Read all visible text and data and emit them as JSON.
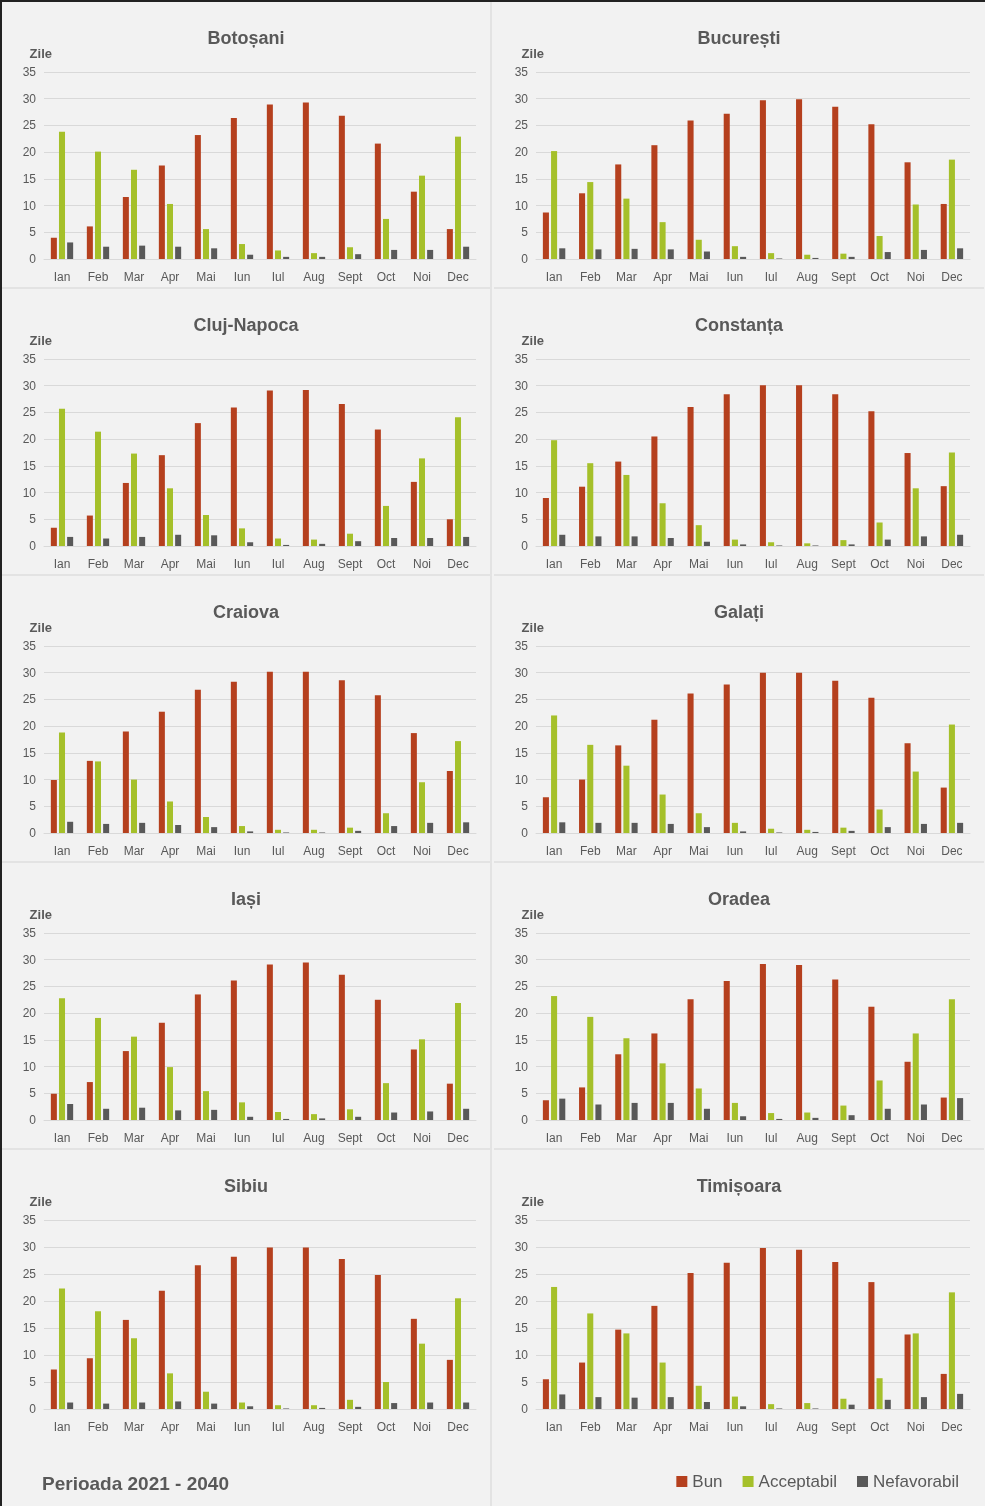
{
  "chart_data": [
    {
      "type": "bar",
      "title": "Botoșani",
      "ylabel": "Zile",
      "categories": [
        "Ian",
        "Feb",
        "Mar",
        "Apr",
        "Mai",
        "Iun",
        "Iul",
        "Aug",
        "Sept",
        "Oct",
        "Noi",
        "Dec"
      ],
      "ylim": [
        0,
        35
      ],
      "yticks": [
        0,
        5,
        10,
        15,
        20,
        25,
        30,
        35
      ],
      "grid": "y",
      "legend": false,
      "series": [
        {
          "color": "#b5401e",
          "values": [
            4,
            6.1,
            11.6,
            17.5,
            23.2,
            26.4,
            28.9,
            29.3,
            26.8,
            21.6,
            12.6,
            5.6
          ]
        },
        {
          "color": "#a5c02a",
          "values": [
            23.8,
            20.1,
            16.7,
            10.3,
            5.6,
            2.8,
            1.6,
            1.1,
            2.2,
            7.5,
            15.6,
            22.9
          ]
        },
        {
          "color": "#595959",
          "values": [
            3.1,
            2.3,
            2.5,
            2.3,
            2,
            0.8,
            0.4,
            0.4,
            0.9,
            1.7,
            1.7,
            2.3
          ]
        }
      ]
    },
    {
      "type": "bar",
      "title": "București",
      "ylabel": "Zile",
      "categories": [
        "Ian",
        "Feb",
        "Mar",
        "Apr",
        "Mai",
        "Iun",
        "Iul",
        "Aug",
        "Sept",
        "Oct",
        "Noi",
        "Dec"
      ],
      "ylim": [
        0,
        35
      ],
      "yticks": [
        0,
        5,
        10,
        15,
        20,
        25,
        30,
        35
      ],
      "grid": "y",
      "legend": false,
      "series": [
        {
          "color": "#b5401e",
          "values": [
            8.7,
            12.3,
            17.7,
            21.3,
            25.9,
            27.2,
            29.7,
            29.9,
            28.5,
            25.2,
            18.1,
            10.3
          ]
        },
        {
          "color": "#a5c02a",
          "values": [
            20.2,
            14.4,
            11.3,
            6.9,
            3.6,
            2.4,
            1.1,
            0.8,
            1,
            4.3,
            10.2,
            18.6
          ]
        },
        {
          "color": "#595959",
          "values": [
            2,
            1.8,
            1.9,
            1.8,
            1.4,
            0.4,
            0.1,
            0.2,
            0.4,
            1.3,
            1.7,
            2
          ]
        }
      ]
    },
    {
      "type": "bar",
      "title": "Cluj-Napoca",
      "ylabel": "Zile",
      "categories": [
        "Ian",
        "Feb",
        "Mar",
        "Apr",
        "Mai",
        "Iun",
        "Iul",
        "Aug",
        "Sept",
        "Oct",
        "Noi",
        "Dec"
      ],
      "ylim": [
        0,
        35
      ],
      "yticks": [
        0,
        5,
        10,
        15,
        20,
        25,
        30,
        35
      ],
      "grid": "y",
      "legend": false,
      "series": [
        {
          "color": "#b5401e",
          "values": [
            3.4,
            5.7,
            11.8,
            17,
            23,
            25.9,
            29.1,
            29.2,
            26.6,
            21.8,
            12,
            5
          ]
        },
        {
          "color": "#a5c02a",
          "values": [
            25.7,
            21.4,
            17.3,
            10.8,
            5.8,
            3.3,
            1.4,
            1.2,
            2.3,
            7.5,
            16.4,
            24.1
          ]
        },
        {
          "color": "#595959",
          "values": [
            1.7,
            1.4,
            1.7,
            2.1,
            2,
            0.7,
            0.2,
            0.4,
            0.9,
            1.5,
            1.5,
            1.7
          ]
        }
      ]
    },
    {
      "type": "bar",
      "title": "Constanța",
      "ylabel": "Zile",
      "categories": [
        "Ian",
        "Feb",
        "Mar",
        "Apr",
        "Mai",
        "Iun",
        "Iul",
        "Aug",
        "Sept",
        "Oct",
        "Noi",
        "Dec"
      ],
      "ylim": [
        0,
        35
      ],
      "yticks": [
        0,
        5,
        10,
        15,
        20,
        25,
        30,
        35
      ],
      "grid": "y",
      "legend": false,
      "series": [
        {
          "color": "#b5401e",
          "values": [
            9,
            11.1,
            15.8,
            20.5,
            26,
            28.4,
            30.1,
            30.1,
            28.4,
            25.2,
            17.4,
            11.2
          ]
        },
        {
          "color": "#a5c02a",
          "values": [
            19.8,
            15.5,
            13.3,
            8,
            3.9,
            1.2,
            0.7,
            0.5,
            1.1,
            4.4,
            10.8,
            17.5
          ]
        },
        {
          "color": "#595959",
          "values": [
            2.1,
            1.8,
            1.8,
            1.5,
            0.8,
            0.3,
            0.1,
            0.1,
            0.3,
            1.2,
            1.8,
            2.1
          ]
        }
      ]
    },
    {
      "type": "bar",
      "title": "Craiova",
      "ylabel": "Zile",
      "categories": [
        "Ian",
        "Feb",
        "Mar",
        "Apr",
        "Mai",
        "Iun",
        "Iul",
        "Aug",
        "Sept",
        "Oct",
        "Noi",
        "Dec"
      ],
      "ylim": [
        0,
        35
      ],
      "yticks": [
        0,
        5,
        10,
        15,
        20,
        25,
        30,
        35
      ],
      "grid": "y",
      "legend": false,
      "series": [
        {
          "color": "#b5401e",
          "values": [
            9.9,
            13.5,
            19,
            22.7,
            26.8,
            28.3,
            30.2,
            30.2,
            28.6,
            25.8,
            18.7,
            11.6
          ]
        },
        {
          "color": "#a5c02a",
          "values": [
            18.8,
            13.4,
            10,
            5.9,
            3,
            1.3,
            0.6,
            0.6,
            1,
            3.7,
            9.5,
            17.2
          ]
        },
        {
          "color": "#595959",
          "values": [
            2.1,
            1.7,
            1.9,
            1.5,
            1.1,
            0.3,
            0.1,
            0.1,
            0.4,
            1.3,
            1.9,
            2
          ]
        }
      ]
    },
    {
      "type": "bar",
      "title": "Galați",
      "ylabel": "Zile",
      "categories": [
        "Ian",
        "Feb",
        "Mar",
        "Apr",
        "Mai",
        "Iun",
        "Iul",
        "Aug",
        "Sept",
        "Oct",
        "Noi",
        "Dec"
      ],
      "ylim": [
        0,
        35
      ],
      "yticks": [
        0,
        5,
        10,
        15,
        20,
        25,
        30,
        35
      ],
      "grid": "y",
      "legend": false,
      "series": [
        {
          "color": "#b5401e",
          "values": [
            6.7,
            10,
            16.4,
            21.2,
            26.1,
            27.8,
            30,
            30,
            28.5,
            25.3,
            16.8,
            8.5
          ]
        },
        {
          "color": "#a5c02a",
          "values": [
            22,
            16.5,
            12.6,
            7.2,
            3.7,
            1.9,
            0.8,
            0.6,
            1,
            4.4,
            11.5,
            20.3
          ]
        },
        {
          "color": "#595959",
          "values": [
            2,
            1.9,
            1.9,
            1.7,
            1.1,
            0.3,
            0.1,
            0.2,
            0.4,
            1.1,
            1.7,
            1.9
          ]
        }
      ]
    },
    {
      "type": "bar",
      "title": "Iași",
      "ylabel": "Zile",
      "categories": [
        "Ian",
        "Feb",
        "Mar",
        "Apr",
        "Mai",
        "Iun",
        "Iul",
        "Aug",
        "Sept",
        "Oct",
        "Noi",
        "Dec"
      ],
      "ylim": [
        0,
        35
      ],
      "yticks": [
        0,
        5,
        10,
        15,
        20,
        25,
        30,
        35
      ],
      "grid": "y",
      "legend": false,
      "series": [
        {
          "color": "#b5401e",
          "values": [
            4.9,
            7.1,
            12.9,
            18.2,
            23.5,
            26.1,
            29.1,
            29.5,
            27.2,
            22.5,
            13.2,
            6.8
          ]
        },
        {
          "color": "#a5c02a",
          "values": [
            22.8,
            19.1,
            15.6,
            9.9,
            5.4,
            3.3,
            1.5,
            1.1,
            2,
            6.9,
            15.1,
            21.9
          ]
        },
        {
          "color": "#595959",
          "values": [
            3,
            2.1,
            2.3,
            1.8,
            1.9,
            0.6,
            0.2,
            0.3,
            0.6,
            1.4,
            1.6,
            2.1
          ]
        }
      ]
    },
    {
      "type": "bar",
      "title": "Oradea",
      "ylabel": "Zile",
      "categories": [
        "Ian",
        "Feb",
        "Mar",
        "Apr",
        "Mai",
        "Iun",
        "Iul",
        "Aug",
        "Sept",
        "Oct",
        "Noi",
        "Dec"
      ],
      "ylim": [
        0,
        35
      ],
      "yticks": [
        0,
        5,
        10,
        15,
        20,
        25,
        30,
        35
      ],
      "grid": "y",
      "legend": false,
      "series": [
        {
          "color": "#b5401e",
          "values": [
            3.7,
            6.1,
            12.3,
            16.2,
            22.6,
            26,
            29.2,
            29,
            26.3,
            21.2,
            10.9,
            4.2
          ]
        },
        {
          "color": "#a5c02a",
          "values": [
            23.2,
            19.3,
            15.3,
            10.6,
            5.9,
            3.2,
            1.3,
            1.4,
            2.7,
            7.4,
            16.2,
            22.6
          ]
        },
        {
          "color": "#595959",
          "values": [
            4,
            2.9,
            3.2,
            3.2,
            2.1,
            0.7,
            0.2,
            0.4,
            0.9,
            2.1,
            2.9,
            4.1
          ]
        }
      ]
    },
    {
      "type": "bar",
      "title": "Sibiu",
      "ylabel": "Zile",
      "categories": [
        "Ian",
        "Feb",
        "Mar",
        "Apr",
        "Mai",
        "Iun",
        "Iul",
        "Aug",
        "Sept",
        "Oct",
        "Noi",
        "Dec"
      ],
      "ylim": [
        0,
        35
      ],
      "yticks": [
        0,
        5,
        10,
        15,
        20,
        25,
        30,
        35
      ],
      "grid": "y",
      "legend": false,
      "annotations": [
        "Perioada 2021 - 2040"
      ],
      "series": [
        {
          "color": "#b5401e",
          "values": [
            7.3,
            9.4,
            16.5,
            21.9,
            26.6,
            28.2,
            29.9,
            29.9,
            27.8,
            24.8,
            16.7,
            9.1
          ]
        },
        {
          "color": "#a5c02a",
          "values": [
            22.3,
            18.1,
            13.1,
            6.6,
            3.2,
            1.2,
            0.7,
            0.7,
            1.7,
            5,
            12.1,
            20.5
          ]
        },
        {
          "color": "#595959",
          "values": [
            1.2,
            1,
            1.2,
            1.4,
            1,
            0.5,
            0.1,
            0.2,
            0.4,
            1.1,
            1.2,
            1.2
          ]
        }
      ]
    },
    {
      "type": "bar",
      "title": "Timișoara",
      "ylabel": "Zile",
      "categories": [
        "Ian",
        "Feb",
        "Mar",
        "Apr",
        "Mai",
        "Iun",
        "Iul",
        "Aug",
        "Sept",
        "Oct",
        "Noi",
        "Dec"
      ],
      "ylim": [
        0,
        35
      ],
      "yticks": [
        0,
        5,
        10,
        15,
        20,
        25,
        30,
        35
      ],
      "grid": "y",
      "legend": "bottom right",
      "series": [
        {
          "name": "Bun",
          "color": "#b5401e",
          "values": [
            5.5,
            8.6,
            14.7,
            19.1,
            25.2,
            27.1,
            29.8,
            29.5,
            27.2,
            23.5,
            13.8,
            6.5
          ]
        },
        {
          "name": "Acceptabil",
          "color": "#a5c02a",
          "values": [
            22.6,
            17.7,
            14,
            8.6,
            4.3,
            2.3,
            0.9,
            1.1,
            1.9,
            5.7,
            14,
            21.6
          ]
        },
        {
          "name": "Nefavorabil",
          "color": "#595959",
          "values": [
            2.7,
            2.2,
            2.1,
            2.2,
            1.3,
            0.5,
            0.1,
            0.1,
            0.8,
            1.7,
            2.2,
            2.8
          ]
        }
      ]
    }
  ]
}
